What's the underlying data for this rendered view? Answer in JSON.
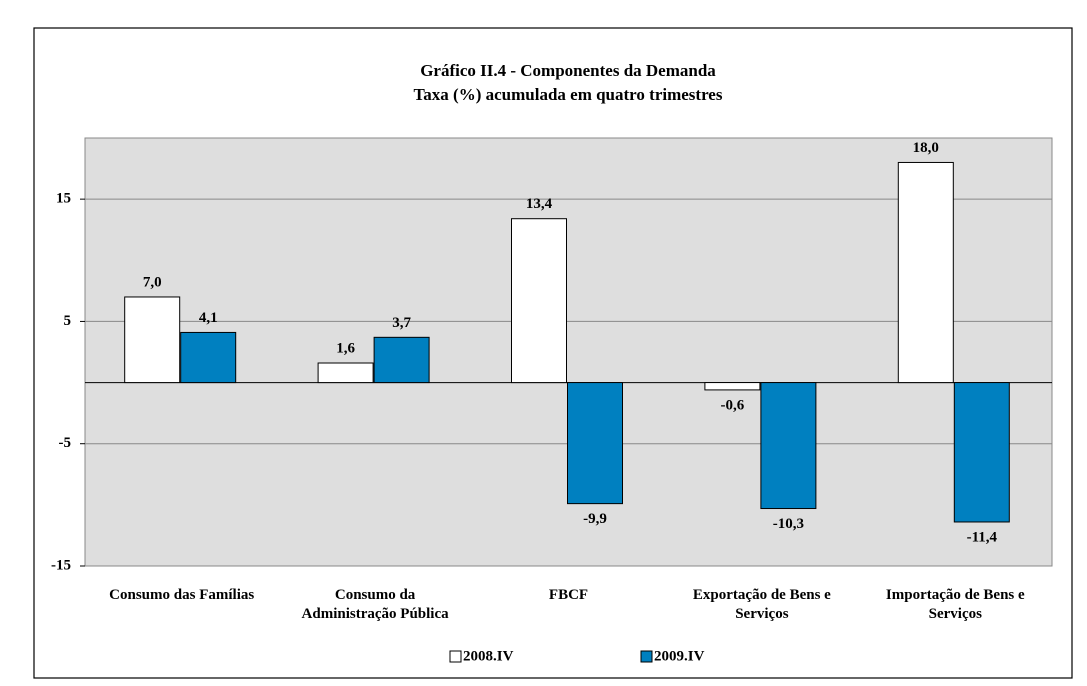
{
  "chart_data": {
    "type": "bar",
    "title": "Gráfico II.4 - Componentes da Demanda",
    "subtitle": "Taxa (%) acumulada em quatro trimestres",
    "categories": [
      "Consumo das Famílias",
      "Consumo da Administração Pública",
      "FBCF",
      "Exportação de Bens e Serviços",
      "Importação de Bens e Serviços"
    ],
    "series": [
      {
        "name": "2008.IV",
        "color": "#ffffff",
        "values": [
          7.0,
          1.6,
          13.4,
          -0.6,
          18.0
        ],
        "value_labels": [
          "7,0",
          "1,6",
          "13,4",
          "-0,6",
          "18,0"
        ]
      },
      {
        "name": "2009.IV",
        "color": "#0080c0",
        "values": [
          4.1,
          3.7,
          -9.9,
          -10.3,
          -11.4
        ],
        "value_labels": [
          "4,1",
          "3,7",
          "-9,9",
          "-10,3",
          "-11,4"
        ]
      }
    ],
    "ylim": [
      -15,
      20
    ],
    "yticks": [
      -15,
      -5,
      5,
      15
    ],
    "grid": true,
    "legend": "bottom"
  }
}
